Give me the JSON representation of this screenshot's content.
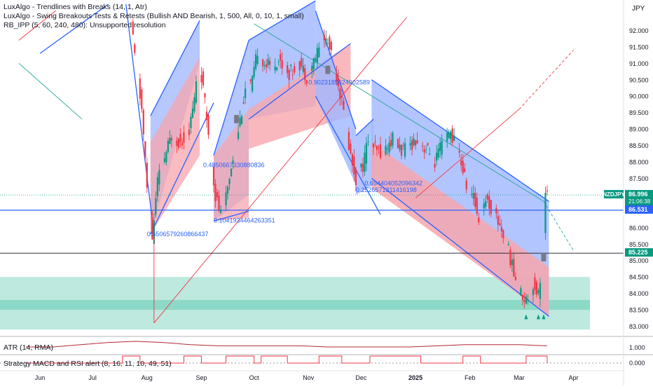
{
  "currency_label": "JPY",
  "indicators": [
    "LuxAlgo - Trendlines with Breaks (14, 1, Atr)",
    "LuxAlgo - Swing Breakouts Tests & Retests (Bullish AND Bearish, 1, 500, All, 0, 10, 1, small)",
    "RB_IPP (5, 60, 240, 480): Unsupported resolution"
  ],
  "sub_panes": {
    "atr_label": "ATR (14, RMA)",
    "strategy_label": "Strategy MACD and RSI alert (8, 16, 11, 10, 49, 51)",
    "atr_ticks": [
      "1.000"
    ],
    "strategy_ticks": [
      "0.000"
    ]
  },
  "colors": {
    "up": "#089981",
    "down": "#f23645",
    "channel_blue": "#2962ff",
    "channel_blue_fill": "#9fb6ff",
    "channel_red_fill": "#f7a6ad",
    "zone_teal": "#6ccfb9",
    "hline": "#2962ff"
  },
  "price_badges": [
    {
      "label": "NZDJPY",
      "value": "86.996",
      "sub": "21:06:38",
      "color": "#089981"
    },
    {
      "label": "",
      "value": "86.531",
      "color": "#2962ff"
    },
    {
      "label": "",
      "value": "85.225",
      "color": "#089981"
    }
  ],
  "annotations": [
    {
      "text": "0.6506579260866437",
      "date": "2024-08-01",
      "price": 85.8
    },
    {
      "text": "0.1041934464263351",
      "date": "2024-09-08",
      "price": 86.22
    },
    {
      "text": "0.4850667330880836",
      "date": "2024-09-02",
      "price": 87.9
    },
    {
      "text": "0.9023185024902589",
      "date": "2024-11-01",
      "price": 90.42
    },
    {
      "text": "0.2526571311416198",
      "date": "2024-11-28",
      "price": 87.15
    },
    {
      "text": "0.654404052096342",
      "date": "2024-12-03",
      "price": 87.35
    }
  ],
  "chart_data": {
    "type": "candlestick",
    "symbol": "NZDJPY",
    "title": "",
    "ylim": [
      82.7,
      92.8
    ],
    "y_ticks": [
      83.0,
      83.5,
      84.0,
      84.5,
      85.0,
      85.5,
      86.0,
      86.5,
      87.0,
      87.5,
      88.0,
      88.5,
      89.0,
      89.5,
      90.0,
      90.5,
      91.0,
      91.5,
      92.0
    ],
    "x_ticks": [
      "Jun",
      "Jul",
      "Aug",
      "Sep",
      "Oct",
      "Nov",
      "Dec",
      "2025",
      "Feb",
      "Mar",
      "Apr"
    ],
    "last_price": 86.996,
    "horizontal_levels": [
      86.531,
      85.225
    ],
    "support_zones": [
      [
        82.9,
        84.5
      ],
      [
        83.5,
        83.8
      ]
    ],
    "path": [
      [
        "2024-07-24",
        92.2
      ],
      [
        "2024-07-26",
        91.2
      ],
      [
        "2024-07-30",
        89.6
      ],
      [
        "2024-08-02",
        87.2
      ],
      [
        "2024-08-05",
        85.7
      ],
      [
        "2024-08-08",
        87.4
      ],
      [
        "2024-08-13",
        88.3
      ],
      [
        "2024-08-16",
        88.8
      ],
      [
        "2024-08-21",
        88.6
      ],
      [
        "2024-08-26",
        89.0
      ],
      [
        "2024-08-29",
        89.9
      ],
      [
        "2024-08-31",
        91.1
      ],
      [
        "2024-09-02",
        90.6
      ],
      [
        "2024-09-06",
        88.9
      ],
      [
        "2024-09-10",
        87.0
      ],
      [
        "2024-09-13",
        86.4
      ],
      [
        "2024-09-16",
        86.9
      ],
      [
        "2024-09-19",
        87.9
      ],
      [
        "2024-09-24",
        89.3
      ],
      [
        "2024-09-27",
        90.2
      ],
      [
        "2024-10-01",
        90.4
      ],
      [
        "2024-10-04",
        91.4
      ],
      [
        "2024-10-08",
        91.0
      ],
      [
        "2024-10-11",
        90.9
      ],
      [
        "2024-10-16",
        91.1
      ],
      [
        "2024-10-22",
        90.7
      ],
      [
        "2024-10-28",
        91.0
      ],
      [
        "2024-11-01",
        90.6
      ],
      [
        "2024-11-06",
        91.2
      ],
      [
        "2024-11-11",
        91.8
      ],
      [
        "2024-11-15",
        91.4
      ],
      [
        "2024-11-19",
        90.4
      ],
      [
        "2024-11-22",
        89.5
      ],
      [
        "2024-11-26",
        88.2
      ],
      [
        "2024-11-29",
        87.5
      ],
      [
        "2024-12-03",
        87.9
      ],
      [
        "2024-12-06",
        88.7
      ],
      [
        "2024-12-11",
        88.3
      ],
      [
        "2024-12-16",
        88.4
      ],
      [
        "2024-12-20",
        88.7
      ],
      [
        "2024-12-26",
        88.3
      ],
      [
        "2025-01-02",
        88.7
      ],
      [
        "2025-01-08",
        88.4
      ],
      [
        "2025-01-13",
        88.0
      ],
      [
        "2025-01-17",
        88.5
      ],
      [
        "2025-01-22",
        88.9
      ],
      [
        "2025-01-27",
        88.2
      ],
      [
        "2025-01-31",
        87.3
      ],
      [
        "2025-02-04",
        86.9
      ],
      [
        "2025-02-07",
        86.3
      ],
      [
        "2025-02-11",
        86.9
      ],
      [
        "2025-02-14",
        86.6
      ],
      [
        "2025-02-19",
        86.1
      ],
      [
        "2025-02-24",
        85.3
      ],
      [
        "2025-02-27",
        84.6
      ],
      [
        "2025-03-03",
        84.0
      ],
      [
        "2025-03-06",
        83.8
      ],
      [
        "2025-03-10",
        84.3
      ],
      [
        "2025-03-13",
        84.0
      ],
      [
        "2025-03-15",
        85.0
      ],
      [
        "2025-03-17",
        87.0
      ]
    ],
    "atr_values": [
      1.0,
      1.0,
      1.02,
      1.04,
      1.05,
      1.04,
      1.02,
      1.01,
      1.01,
      1.01,
      1.01,
      1.0,
      1.0,
      1.0,
      1.0,
      1.01,
      1.02,
      1.02,
      1.02,
      1.01
    ]
  }
}
